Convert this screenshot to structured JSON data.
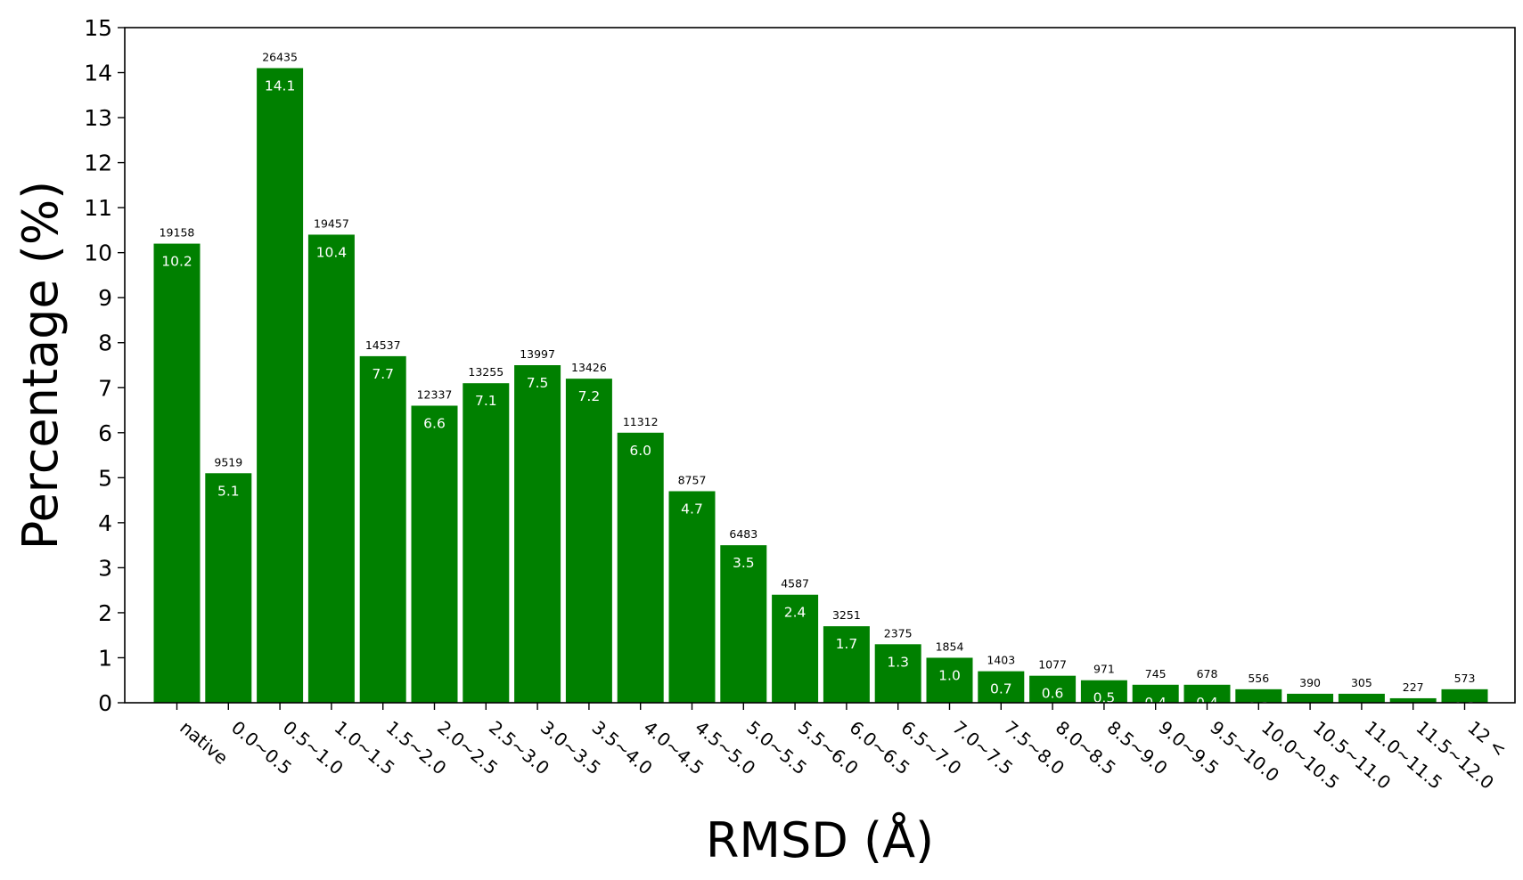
{
  "chart_data": {
    "type": "bar",
    "xlabel": "RMSD (Å)",
    "ylabel": "Percentage (%)",
    "ylim": [
      0,
      15
    ],
    "yticks": [
      0,
      1,
      2,
      3,
      4,
      5,
      6,
      7,
      8,
      9,
      10,
      11,
      12,
      13,
      14,
      15
    ],
    "categories": [
      "native",
      "0.0~0.5",
      "0.5~1.0",
      "1.0~1.5",
      "1.5~2.0",
      "2.0~2.5",
      "2.5~3.0",
      "3.0~3.5",
      "3.5~4.0",
      "4.0~4.5",
      "4.5~5.0",
      "5.0~5.5",
      "5.5~6.0",
      "6.0~6.5",
      "6.5~7.0",
      "7.0~7.5",
      "7.5~8.0",
      "8.0~8.5",
      "8.5~9.0",
      "9.0~9.5",
      "9.5~10.0",
      "10.0~10.5",
      "10.5~11.0",
      "11.0~11.5",
      "11.5~12.0",
      "12 <"
    ],
    "values": [
      10.2,
      5.1,
      14.1,
      10.4,
      7.7,
      6.6,
      7.1,
      7.5,
      7.2,
      6.0,
      4.7,
      3.5,
      2.4,
      1.7,
      1.3,
      1.0,
      0.7,
      0.6,
      0.5,
      0.4,
      0.4,
      0.3,
      0.2,
      0.2,
      0.1,
      0.3
    ],
    "value_labels": [
      "10.2",
      "5.1",
      "14.1",
      "10.4",
      "7.7",
      "6.6",
      "7.1",
      "7.5",
      "7.2",
      "6.0",
      "4.7",
      "3.5",
      "2.4",
      "1.7",
      "1.3",
      "1.0",
      "0.7",
      "0.6",
      "0.5",
      "0.4",
      "0.4",
      "0.3",
      "0.2",
      "0.2",
      "0.1",
      "0.3"
    ],
    "counts": [
      19158,
      9519,
      26435,
      19457,
      14537,
      12337,
      13255,
      13997,
      13426,
      11312,
      8757,
      6483,
      4587,
      3251,
      2375,
      1854,
      1403,
      1077,
      971,
      745,
      678,
      556,
      390,
      305,
      227,
      573
    ],
    "bar_color": "#008000",
    "grid": false
  }
}
